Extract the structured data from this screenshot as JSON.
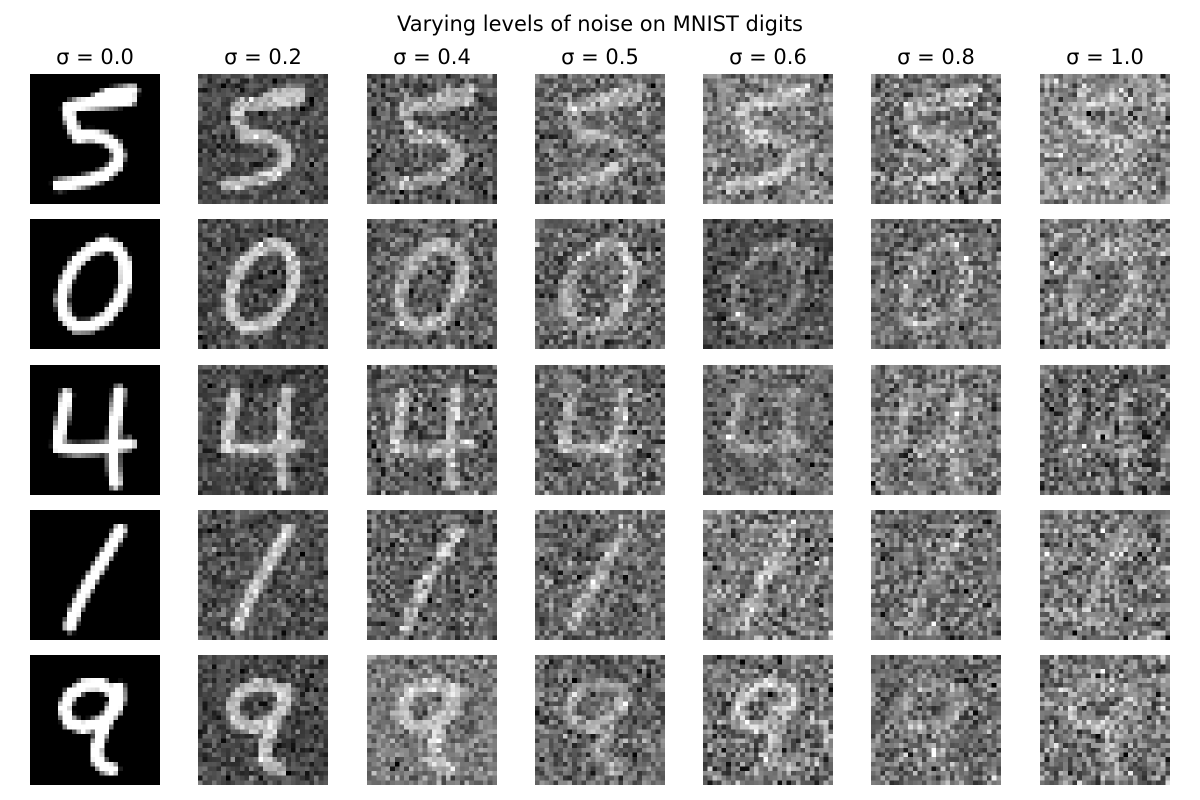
{
  "chart_data": {
    "type": "heatmap",
    "title": "Varying levels of noise on MNIST digits",
    "colormap": "gray",
    "image_size": [
      28,
      28
    ],
    "digits": [
      "5",
      "0",
      "4",
      "1",
      "9"
    ],
    "sigmas": [
      0.0,
      0.2,
      0.4,
      0.5,
      0.6,
      0.8,
      1.0
    ],
    "column_labels": [
      "σ = 0.0",
      "σ = 0.2",
      "σ = 0.4",
      "σ = 0.5",
      "σ = 0.6",
      "σ = 0.8",
      "σ = 1.0"
    ],
    "axes_visible": false,
    "grid": false
  }
}
